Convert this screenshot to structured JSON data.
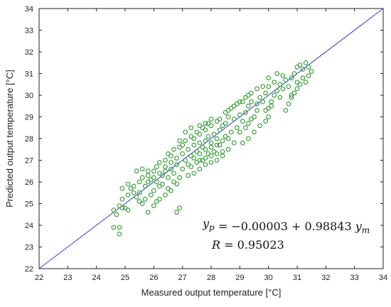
{
  "chart_data": {
    "type": "scatter",
    "xlabel": "Measured output temperature [°C]",
    "ylabel": "Predicted output temperature [°C]",
    "xlim": [
      22,
      34
    ],
    "ylim": [
      22,
      34
    ],
    "x_ticks": [
      22,
      23,
      24,
      25,
      26,
      27,
      28,
      29,
      30,
      31,
      32,
      33,
      34
    ],
    "y_ticks": [
      22,
      23,
      24,
      25,
      26,
      27,
      28,
      29,
      30,
      31,
      32,
      33,
      34
    ],
    "grid": false,
    "marker": "open-circle",
    "marker_color": "#2e9a2e",
    "reference_line": {
      "from": [
        22,
        22
      ],
      "to": [
        34,
        34
      ],
      "color": "#3a3ad6"
    },
    "annotations": {
      "equation": "y_p = −0.00003 + 0.98843 y_m",
      "correlation": "R = 0.95023"
    },
    "points": [
      [
        24.6,
        24.7
      ],
      [
        24.7,
        24.5
      ],
      [
        24.8,
        24.9
      ],
      [
        24.9,
        24.8
      ],
      [
        24.6,
        23.9
      ],
      [
        24.8,
        23.9
      ],
      [
        24.8,
        23.6
      ],
      [
        25.0,
        24.8
      ],
      [
        25.1,
        24.7
      ],
      [
        24.9,
        25.2
      ],
      [
        25.1,
        25.4
      ],
      [
        25.3,
        25.5
      ],
      [
        25.4,
        25.3
      ],
      [
        25.5,
        25.5
      ],
      [
        24.9,
        25.7
      ],
      [
        25.1,
        25.9
      ],
      [
        25.2,
        25.7
      ],
      [
        25.4,
        26.5
      ],
      [
        25.6,
        26.6
      ],
      [
        25.8,
        26.5
      ],
      [
        25.5,
        25.1
      ],
      [
        25.6,
        25.0
      ],
      [
        25.7,
        25.2
      ],
      [
        25.8,
        24.6
      ],
      [
        25.9,
        25.4
      ],
      [
        26.0,
        25.6
      ],
      [
        25.7,
        25.8
      ],
      [
        25.8,
        26.0
      ],
      [
        25.9,
        26.1
      ],
      [
        26.0,
        26.2
      ],
      [
        26.1,
        26.0
      ],
      [
        26.2,
        25.8
      ],
      [
        26.3,
        26.3
      ],
      [
        26.4,
        26.5
      ],
      [
        26.5,
        26.2
      ],
      [
        26.6,
        26.6
      ],
      [
        26.7,
        26.4
      ],
      [
        26.8,
        26.8
      ],
      [
        26.2,
        26.9
      ],
      [
        26.4,
        27.0
      ],
      [
        26.6,
        27.2
      ],
      [
        26.8,
        27.1
      ],
      [
        27.0,
        27.3
      ],
      [
        27.1,
        27.0
      ],
      [
        26.3,
        25.9
      ],
      [
        26.5,
        25.7
      ],
      [
        26.7,
        26.0
      ],
      [
        26.9,
        26.2
      ],
      [
        27.0,
        26.6
      ],
      [
        27.2,
        26.8
      ],
      [
        26.0,
        24.9
      ],
      [
        26.1,
        25.1
      ],
      [
        26.2,
        25.2
      ],
      [
        26.4,
        25.4
      ],
      [
        26.6,
        25.6
      ],
      [
        26.8,
        25.9
      ],
      [
        26.8,
        24.6
      ],
      [
        26.9,
        24.8
      ],
      [
        27.2,
        27.5
      ],
      [
        27.3,
        27.2
      ],
      [
        27.4,
        27.7
      ],
      [
        27.5,
        27.4
      ],
      [
        27.6,
        27.8
      ],
      [
        27.7,
        27.6
      ],
      [
        27.8,
        27.9
      ],
      [
        27.9,
        28.1
      ],
      [
        28.0,
        27.8
      ],
      [
        28.1,
        28.2
      ],
      [
        28.2,
        28.0
      ],
      [
        28.3,
        28.4
      ],
      [
        27.3,
        26.7
      ],
      [
        27.5,
        26.9
      ],
      [
        27.7,
        27.0
      ],
      [
        27.9,
        27.3
      ],
      [
        28.1,
        27.4
      ],
      [
        28.3,
        27.7
      ],
      [
        27.4,
        28.0
      ],
      [
        27.6,
        28.2
      ],
      [
        27.8,
        28.4
      ],
      [
        28.0,
        28.6
      ],
      [
        28.2,
        28.8
      ],
      [
        28.4,
        28.6
      ],
      [
        27.2,
        26.3
      ],
      [
        27.4,
        26.4
      ],
      [
        27.6,
        26.6
      ],
      [
        27.8,
        26.8
      ],
      [
        28.0,
        26.9
      ],
      [
        28.2,
        27.0
      ],
      [
        28.4,
        27.2
      ],
      [
        28.6,
        27.5
      ],
      [
        28.8,
        27.8
      ],
      [
        28.5,
        28.1
      ],
      [
        28.7,
        28.3
      ],
      [
        28.9,
        28.5
      ],
      [
        28.5,
        28.7
      ],
      [
        28.6,
        29.0
      ],
      [
        28.8,
        28.9
      ],
      [
        29.0,
        29.1
      ],
      [
        29.1,
        28.8
      ],
      [
        29.2,
        29.2
      ],
      [
        29.0,
        28.3
      ],
      [
        29.2,
        28.5
      ],
      [
        29.3,
        28.7
      ],
      [
        29.4,
        28.9
      ],
      [
        29.5,
        29.0
      ],
      [
        29.6,
        29.3
      ],
      [
        29.3,
        29.5
      ],
      [
        29.4,
        29.7
      ],
      [
        29.6,
        29.6
      ],
      [
        29.7,
        29.9
      ],
      [
        29.8,
        29.7
      ],
      [
        29.9,
        30.1
      ],
      [
        29.1,
        27.8
      ],
      [
        29.3,
        28.0
      ],
      [
        29.5,
        28.3
      ],
      [
        29.7,
        28.6
      ],
      [
        29.9,
        28.8
      ],
      [
        30.0,
        29.0
      ],
      [
        30.0,
        29.4
      ],
      [
        30.1,
        29.7
      ],
      [
        30.2,
        30.0
      ],
      [
        30.3,
        30.2
      ],
      [
        30.4,
        29.9
      ],
      [
        30.5,
        30.3
      ],
      [
        30.0,
        30.4
      ],
      [
        30.2,
        30.6
      ],
      [
        30.4,
        30.5
      ],
      [
        30.6,
        30.7
      ],
      [
        30.7,
        30.4
      ],
      [
        30.8,
        30.8
      ],
      [
        30.6,
        29.3
      ],
      [
        30.7,
        29.6
      ],
      [
        30.8,
        29.9
      ],
      [
        30.9,
        30.1
      ],
      [
        31.0,
        30.3
      ],
      [
        31.1,
        30.5
      ],
      [
        30.9,
        31.0
      ],
      [
        31.0,
        31.3
      ],
      [
        31.1,
        31.4
      ],
      [
        31.2,
        31.2
      ],
      [
        31.3,
        31.5
      ],
      [
        31.4,
        31.3
      ],
      [
        30.8,
        30.0
      ],
      [
        31.0,
        30.6
      ],
      [
        31.2,
        30.8
      ],
      [
        31.3,
        30.6
      ],
      [
        31.4,
        30.9
      ],
      [
        31.5,
        31.1
      ],
      [
        27.0,
        27.7
      ],
      [
        27.1,
        27.9
      ],
      [
        27.3,
        28.1
      ],
      [
        27.5,
        28.3
      ],
      [
        27.7,
        28.5
      ],
      [
        27.9,
        28.7
      ],
      [
        26.5,
        27.3
      ],
      [
        26.7,
        27.5
      ],
      [
        26.9,
        27.6
      ],
      [
        26.6,
        26.9
      ],
      [
        26.4,
        26.7
      ],
      [
        26.2,
        26.4
      ],
      [
        28.6,
        29.3
      ],
      [
        28.8,
        29.5
      ],
      [
        29.0,
        29.7
      ],
      [
        29.2,
        29.9
      ],
      [
        29.4,
        30.1
      ],
      [
        29.6,
        30.3
      ],
      [
        27.6,
        27.3
      ],
      [
        27.8,
        27.5
      ],
      [
        28.0,
        27.6
      ],
      [
        28.2,
        27.7
      ],
      [
        28.4,
        27.9
      ],
      [
        28.6,
        28.0
      ],
      [
        29.8,
        30.4
      ],
      [
        30.0,
        30.8
      ],
      [
        30.3,
        31.0
      ],
      [
        30.5,
        30.9
      ],
      [
        29.9,
        29.3
      ],
      [
        30.1,
        29.5
      ],
      [
        25.3,
        25.8
      ],
      [
        25.5,
        26.0
      ],
      [
        25.6,
        26.2
      ],
      [
        25.8,
        26.3
      ],
      [
        26.0,
        26.5
      ],
      [
        26.1,
        26.7
      ],
      [
        26.9,
        27.9
      ],
      [
        27.1,
        28.3
      ],
      [
        27.3,
        28.5
      ],
      [
        27.6,
        28.6
      ],
      [
        27.8,
        28.7
      ],
      [
        28.0,
        28.9
      ],
      [
        28.3,
        28.9
      ],
      [
        28.5,
        29.2
      ],
      [
        28.7,
        29.4
      ],
      [
        28.9,
        29.6
      ],
      [
        29.1,
        29.7
      ],
      [
        29.3,
        30.0
      ],
      [
        27.4,
        27.1
      ],
      [
        27.6,
        27.0
      ],
      [
        27.8,
        27.1
      ],
      [
        28.0,
        27.2
      ],
      [
        28.2,
        27.3
      ],
      [
        28.4,
        27.4
      ]
    ]
  }
}
